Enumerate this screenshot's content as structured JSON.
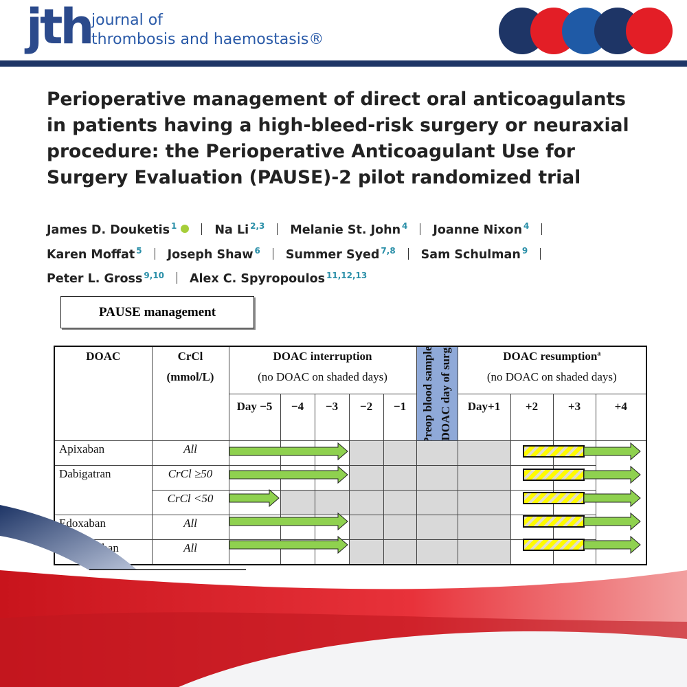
{
  "header": {
    "logo": "jth",
    "journal_line1": "journal of",
    "journal_line2": "thrombosis and haemostasis®"
  },
  "title": "Perioperative management of direct oral anticoagulants in patients having a high-bleed-risk surgery or neuraxial procedure: the Perioperative Anticoagulant Use for Surgery Evaluation (PAUSE)-2 pilot randomized trial",
  "authors": [
    {
      "name": "James D. Douketis",
      "affiliations": "1"
    },
    {
      "name": "Na Li",
      "affiliations": "2,3"
    },
    {
      "name": "Melanie St. John",
      "affiliations": "4"
    },
    {
      "name": "Joanne Nixon",
      "affiliations": "4"
    },
    {
      "name": "Karen Moffat",
      "affiliations": "5"
    },
    {
      "name": "Joseph Shaw",
      "affiliations": "6"
    },
    {
      "name": "Summer Syed",
      "affiliations": "7,8"
    },
    {
      "name": "Sam Schulman",
      "affiliations": "9"
    },
    {
      "name": "Peter L. Gross",
      "affiliations": "9,10"
    },
    {
      "name": "Alex C. Spyropoulos",
      "affiliations": "11,12,13"
    }
  ],
  "figure": {
    "box_title": "PAUSE management",
    "columns": {
      "doac": "DOAC",
      "crcl": "CrCl",
      "crcl_unit": "(mmol/L)",
      "interruption_title": "DOAC interruption",
      "interruption_note": "(no DOAC on shaded days)",
      "interruption_days": [
        "Day −5",
        "−4",
        "−3",
        "−2",
        "−1"
      ],
      "surgery_line1": "Preop blood sample,",
      "surgery_line2": "no DOAC day of surgery",
      "resumption_title": "DOAC resumption",
      "resumption_footnote": "a",
      "resumption_note": "(no DOAC on shaded days)",
      "resumption_days": [
        "Day+1",
        "+2",
        "+3",
        "+4"
      ]
    },
    "rows": [
      {
        "drug": "Apixaban",
        "crcl": [
          "All"
        ]
      },
      {
        "drug": "Dabigatran",
        "crcl": [
          "CrCl ≥50",
          "CrCl <50"
        ]
      },
      {
        "drug": "Edoxaban",
        "crcl": [
          "All"
        ]
      },
      {
        "drug": "Rivaroxaban",
        "crcl": [
          "All"
        ]
      }
    ]
  }
}
